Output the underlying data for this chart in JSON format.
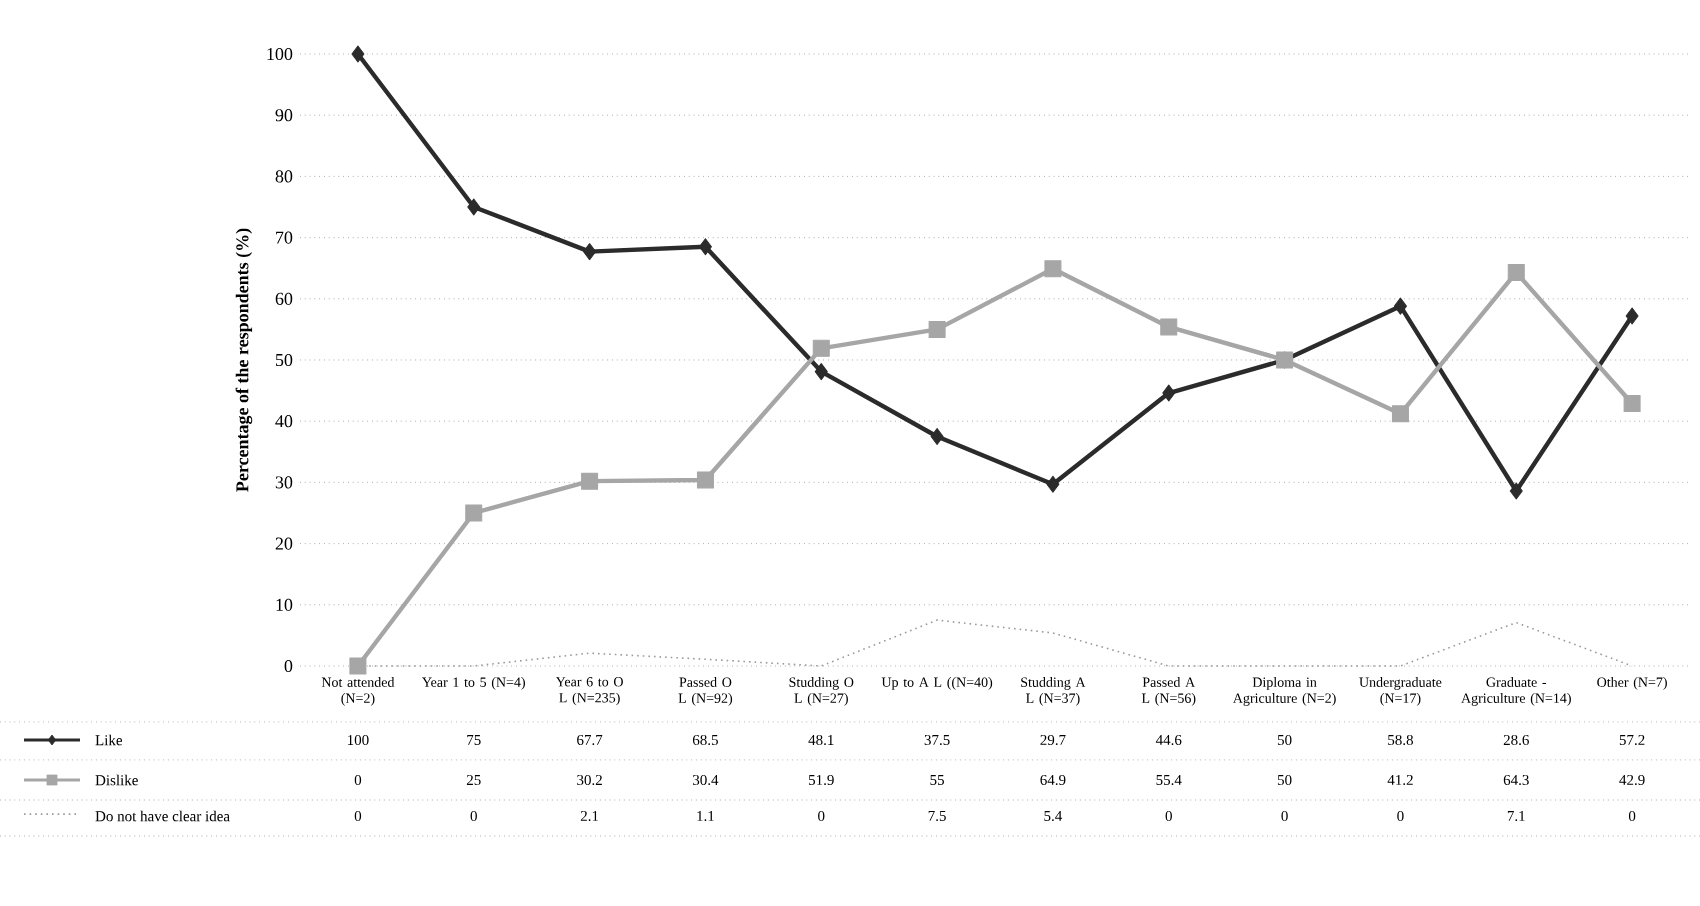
{
  "chart_data": {
    "type": "line",
    "ylabel": "Percentage of the respondents (%)",
    "categories": [
      "Not attended (N=2)",
      "Year 1 to 5 (N=4)",
      "Year 6 to O L (N=235)",
      "Passed O L (N=92)",
      "Studding O L (N=27)",
      "Up to A L ((N=40)",
      "Studding A L (N=37)",
      "Passed A L (N=56)",
      "Diploma in Agriculture (N=2)",
      "Undergraduate (N=17)",
      "Graduate - Agriculture (N=14)",
      "Other (N=7)"
    ],
    "series": [
      {
        "name": "Like",
        "color": "#2b2b2b",
        "marker": "diamond",
        "line_style": "solid",
        "values": [
          100,
          75,
          67.7,
          68.5,
          48.1,
          37.5,
          29.7,
          44.6,
          50,
          58.8,
          28.6,
          57.2
        ]
      },
      {
        "name": "Dislike",
        "color": "#a6a6a6",
        "marker": "square",
        "line_style": "solid",
        "values": [
          0,
          25,
          30.2,
          30.4,
          51.9,
          55,
          64.9,
          55.4,
          50,
          41.2,
          64.3,
          42.9
        ]
      },
      {
        "name": "Do not have clear idea",
        "color": "#9a9a9a",
        "marker": "none",
        "line_style": "dotted",
        "values": [
          0,
          0,
          2.1,
          1.1,
          0,
          7.5,
          5.4,
          0,
          0,
          0,
          7.1,
          0
        ]
      }
    ],
    "ylim": [
      0,
      100
    ],
    "yticks": [
      0,
      10,
      20,
      30,
      40,
      50,
      60,
      70,
      80,
      90,
      100
    ],
    "grid": "y",
    "legend": "bottom left",
    "data_labels": true
  }
}
